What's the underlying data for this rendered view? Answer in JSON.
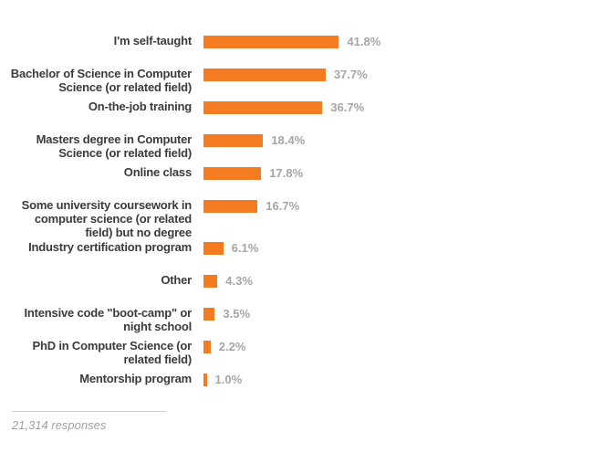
{
  "chart_data": {
    "type": "bar",
    "orientation": "horizontal",
    "title": "",
    "xlabel": "",
    "ylabel": "",
    "grid": false,
    "legend": null,
    "xlim": [
      0,
      45
    ],
    "categories": [
      "I'm self-taught",
      "Bachelor of Science in Computer Science (or related field)",
      "On-the-job training",
      "Masters degree in Computer Science (or related field)",
      "Online class",
      "Some university coursework in computer science (or related field) but no degree",
      "Industry certification program",
      "Other",
      "Intensive code \"boot-camp\" or night school",
      "PhD in Computer Science (or related field)",
      "Mentorship program"
    ],
    "values": [
      41.8,
      37.7,
      36.7,
      18.4,
      17.8,
      16.7,
      6.1,
      4.3,
      3.5,
      2.2,
      1.0
    ],
    "value_labels": [
      "41.8%",
      "37.7%",
      "36.7%",
      "18.4%",
      "17.8%",
      "16.7%",
      "6.1%",
      "4.3%",
      "3.5%",
      "2.2%",
      "1.0%"
    ]
  },
  "colors": {
    "bar": "#f47b20",
    "label_text": "#3b3b3b",
    "value_text": "#a6a6a6",
    "footer_text": "#9ea0a8",
    "divider": "#cfcfd4",
    "background": "#ffffff"
  },
  "footer": {
    "responses": "21,314 responses"
  }
}
